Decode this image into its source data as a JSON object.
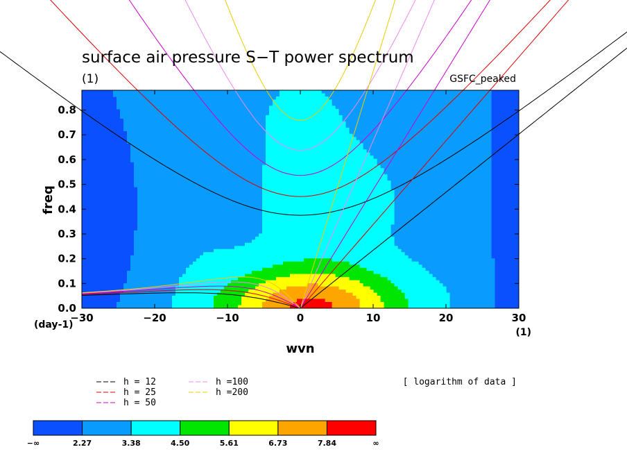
{
  "chart_data": {
    "type": "heatmap",
    "title": "surface air pressure S−T power spectrum",
    "units_label": "(1)",
    "model_label": "GSFC_peaked",
    "xlabel": "wvn",
    "ylabel": "freq",
    "x_unit_label": "(1)",
    "y_unit_label": "(day-1)",
    "xlim": [
      -30,
      30
    ],
    "ylim": [
      0,
      0.88
    ],
    "x_ticks": [
      -30,
      -20,
      -10,
      0,
      10,
      20,
      30
    ],
    "x_tick_labels": [
      "−30",
      "−20",
      "−10",
      "0",
      "10",
      "20",
      "30"
    ],
    "y_ticks": [
      0,
      0.1,
      0.2,
      0.3,
      0.4,
      0.5,
      0.6,
      0.7,
      0.8
    ],
    "y_tick_labels": [
      "0.0",
      "0.1",
      "0.2",
      "0.3",
      "0.4",
      "0.5",
      "0.6",
      "0.7",
      "0.8"
    ],
    "note": "[ logarithm of data ]",
    "levels": [
      2.27,
      3.38,
      4.5,
      5.61,
      6.73,
      7.84
    ],
    "colorbar_labels": [
      "−∞",
      "2.27",
      "3.38",
      "4.50",
      "5.61",
      "6.73",
      "7.84",
      "∞"
    ],
    "colors": [
      "#0a50ff",
      "#0a9bff",
      "#00ffff",
      "#00e600",
      "#ffff00",
      "#ffa500",
      "#ff0000"
    ],
    "dispersion_legend": [
      {
        "label": "h = 12",
        "color": "#000000"
      },
      {
        "label": "h = 25",
        "color": "#dd0000"
      },
      {
        "label": "h = 50",
        "color": "#cc00cc"
      },
      {
        "label": "h =100",
        "color": "#ee88ee"
      },
      {
        "label": "h =200",
        "color": "#eecc00"
      }
    ],
    "equivalent_depths": [
      12,
      25,
      50,
      100,
      200
    ]
  }
}
